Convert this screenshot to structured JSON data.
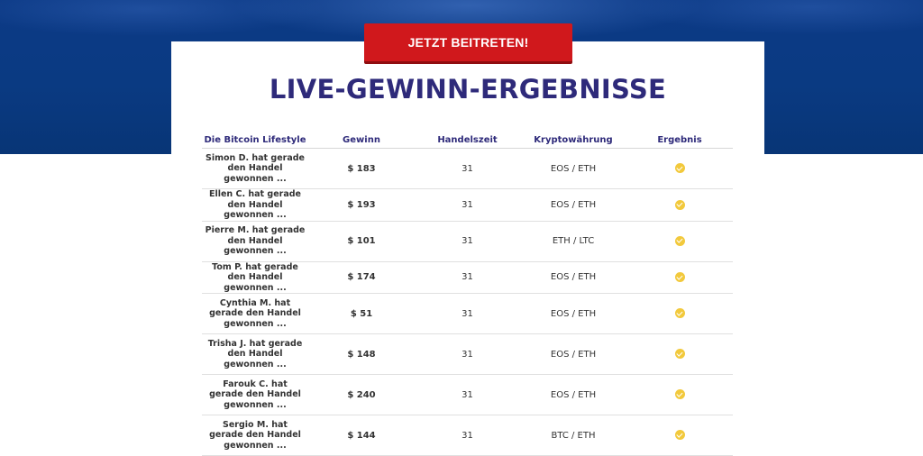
{
  "cta": {
    "label": "JETZT BEITRETEN!"
  },
  "title": "LIVE-GEWINN-ERGEBNISSE",
  "table": {
    "headers": [
      "Die Bitcoin Lifestyle",
      "Gewinn",
      "Handelszeit",
      "Kryptowährung",
      "Ergebnis"
    ],
    "rows": [
      {
        "name": "Simon D. hat gerade den Handel gewonnen ...",
        "profit": "$ 183",
        "time": "31",
        "pair": "EOS / ETH",
        "result_icon": "check-circle-icon"
      },
      {
        "name": "Ellen C. hat gerade den Handel gewonnen ...",
        "profit": "$ 193",
        "time": "31",
        "pair": "EOS / ETH",
        "result_icon": "check-circle-icon"
      },
      {
        "name": "Pierre M. hat gerade den Handel gewonnen ...",
        "profit": "$ 101",
        "time": "31",
        "pair": "ETH / LTC",
        "result_icon": "check-circle-icon"
      },
      {
        "name": "Tom P. hat gerade den Handel gewonnen ...",
        "profit": "$ 174",
        "time": "31",
        "pair": "EOS / ETH",
        "result_icon": "check-circle-icon"
      },
      {
        "name": "Cynthia M. hat gerade den Handel gewonnen ...",
        "profit": "$ 51",
        "time": "31",
        "pair": "EOS / ETH",
        "result_icon": "check-circle-icon"
      },
      {
        "name": "Trisha J. hat gerade den Handel gewonnen ...",
        "profit": "$ 148",
        "time": "31",
        "pair": "EOS / ETH",
        "result_icon": "check-circle-icon"
      },
      {
        "name": "Farouk C. hat gerade den Handel gewonnen ...",
        "profit": "$ 240",
        "time": "31",
        "pair": "EOS / ETH",
        "result_icon": "check-circle-icon"
      },
      {
        "name": "Sergio M. hat gerade den Handel gewonnen ...",
        "profit": "$ 144",
        "time": "31",
        "pair": "BTC / ETH",
        "result_icon": "check-circle-icon"
      }
    ]
  },
  "colors": {
    "hero_blue": "#0a3a82",
    "cta_red": "#d0181c",
    "title_navy": "#2e2a7a",
    "check_yellow": "#f2c93c"
  }
}
